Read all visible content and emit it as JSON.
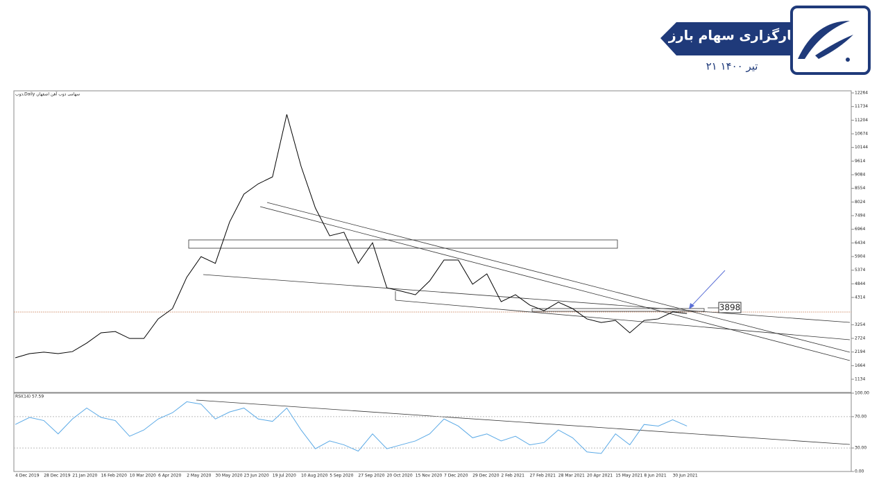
{
  "header": {
    "broker": "کارگزاری سهام بارز",
    "date": "۲۱ تیر ۱۴۰۰"
  },
  "chart_data": [
    {
      "type": "line",
      "title": "ذوب,Daily  سهامی ذوب آهن اصفهان",
      "color": "#000000",
      "values": [
        1970,
        2130,
        2190,
        2130,
        2210,
        2540,
        2940,
        2990,
        2720,
        2720,
        3480,
        3880,
        5100,
        5900,
        5640,
        7250,
        8330,
        8730,
        9000,
        11430,
        9410,
        7790,
        6710,
        6850,
        5640,
        6440,
        4690,
        4560,
        4420,
        4960,
        5770,
        5770,
        4830,
        5230,
        4150,
        4420,
        4020,
        3800,
        4130,
        3880,
        3480,
        3340,
        3420,
        2940,
        3420,
        3480,
        3750,
        3690
      ],
      "ylim": [
        622,
        12345
      ],
      "yticks": [
        12264,
        11734,
        11204,
        10674,
        10144,
        9614,
        9084,
        8554,
        8024,
        7494,
        6964,
        6434,
        5904,
        5374,
        4844,
        4314,
        3254,
        2724,
        2194,
        1664,
        1134
      ],
      "annotations": [
        "3898"
      ]
    },
    {
      "type": "line",
      "title": "RSI(14) 57.59",
      "color": "#5aa9e6",
      "categories": [
        "4 Dec 2019",
        null,
        "28 Dec 2019",
        null,
        "21 Jan 2020",
        null,
        "16 Feb 2020",
        null,
        "10 Mar 2020",
        null,
        "6 Apr 2020",
        null,
        "2 May 2020",
        null,
        "30 May 2020",
        null,
        "23 Jun 2020",
        null,
        "19 Jul 2020",
        null,
        "10 Aug 2020",
        null,
        "5 Sep 2020",
        null,
        "27 Sep 2020",
        null,
        "20 Oct 2020",
        null,
        "15 Nov 2020",
        null,
        "7 Dec 2020",
        null,
        "29 Dec 2020",
        null,
        "2 Feb 2021",
        null,
        "27 Feb 2021",
        null,
        "28 Mar 2021",
        null,
        "20 Apr 2021",
        null,
        "15 May 2021",
        null,
        "8 Jun 2021",
        null,
        "30 Jun 2021",
        null
      ],
      "values": [
        60,
        69,
        65,
        48,
        67,
        81,
        69,
        65,
        45,
        53,
        67,
        75,
        89,
        86,
        67,
        76,
        81,
        67,
        64,
        81,
        53,
        29,
        39,
        34,
        26,
        48,
        29,
        34,
        39,
        48,
        67,
        58,
        43,
        48,
        39,
        45,
        34,
        37,
        53,
        43,
        25,
        23,
        48,
        34,
        60,
        58,
        66,
        58
      ],
      "ylim": [
        0,
        100
      ],
      "yticks": [
        {
          "value": 100,
          "label": "100.00"
        },
        {
          "value": 70,
          "label": "70.00"
        },
        {
          "value": 30,
          "label": "30.00"
        },
        {
          "value": 0,
          "label": "0.00"
        }
      ],
      "grid": true
    }
  ]
}
